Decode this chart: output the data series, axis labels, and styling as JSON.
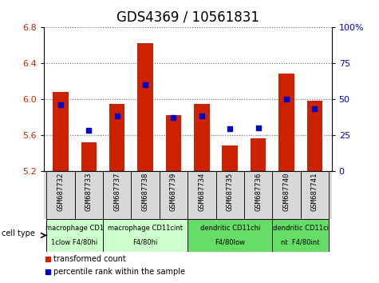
{
  "title": "GDS4369 / 10561831",
  "samples": [
    "GSM687732",
    "GSM687733",
    "GSM687737",
    "GSM687738",
    "GSM687739",
    "GSM687734",
    "GSM687735",
    "GSM687736",
    "GSM687740",
    "GSM687741"
  ],
  "transformed_count": [
    6.08,
    5.52,
    5.94,
    6.62,
    5.82,
    5.94,
    5.48,
    5.56,
    6.28,
    5.98
  ],
  "percentile_rank": [
    46,
    28,
    38,
    60,
    37,
    38,
    29,
    30,
    50,
    43
  ],
  "ylim": [
    5.2,
    6.8
  ],
  "yticks": [
    5.2,
    5.6,
    6.0,
    6.4,
    6.8
  ],
  "y2lim": [
    0,
    100
  ],
  "y2ticks": [
    0,
    25,
    50,
    75,
    100
  ],
  "y2ticklabels": [
    "0",
    "25",
    "50",
    "75",
    "100%"
  ],
  "bar_color": "#cc2200",
  "dot_color": "#0000cc",
  "bar_width": 0.55,
  "cell_type_groups": [
    {
      "label": "macrophage CD1\n1clow F4/80hi",
      "start": 0,
      "end": 1,
      "bg": "#ccffcc"
    },
    {
      "label": "macrophage CD11cint\nF4/80hi",
      "start": 2,
      "end": 4,
      "bg": "#ccffcc"
    },
    {
      "label": "dendritic CD11chi\nF4/80low",
      "start": 5,
      "end": 7,
      "bg": "#66dd66"
    },
    {
      "label": "dendritic CD11ci\nnt  F4/80int",
      "start": 8,
      "end": 9,
      "bg": "#66dd66"
    }
  ],
  "legend_red_label": "transformed count",
  "legend_blue_label": "percentile rank within the sample",
  "cell_type_label": "cell type",
  "bg_color": "#ffffff",
  "plot_bg": "#ffffff",
  "tick_label_color_left": "#cc2200",
  "tick_label_color_right": "#0000cc",
  "title_fontsize": 12,
  "axis_fontsize": 8,
  "sample_fontsize": 6.5,
  "ct_fontsize": 6.0
}
